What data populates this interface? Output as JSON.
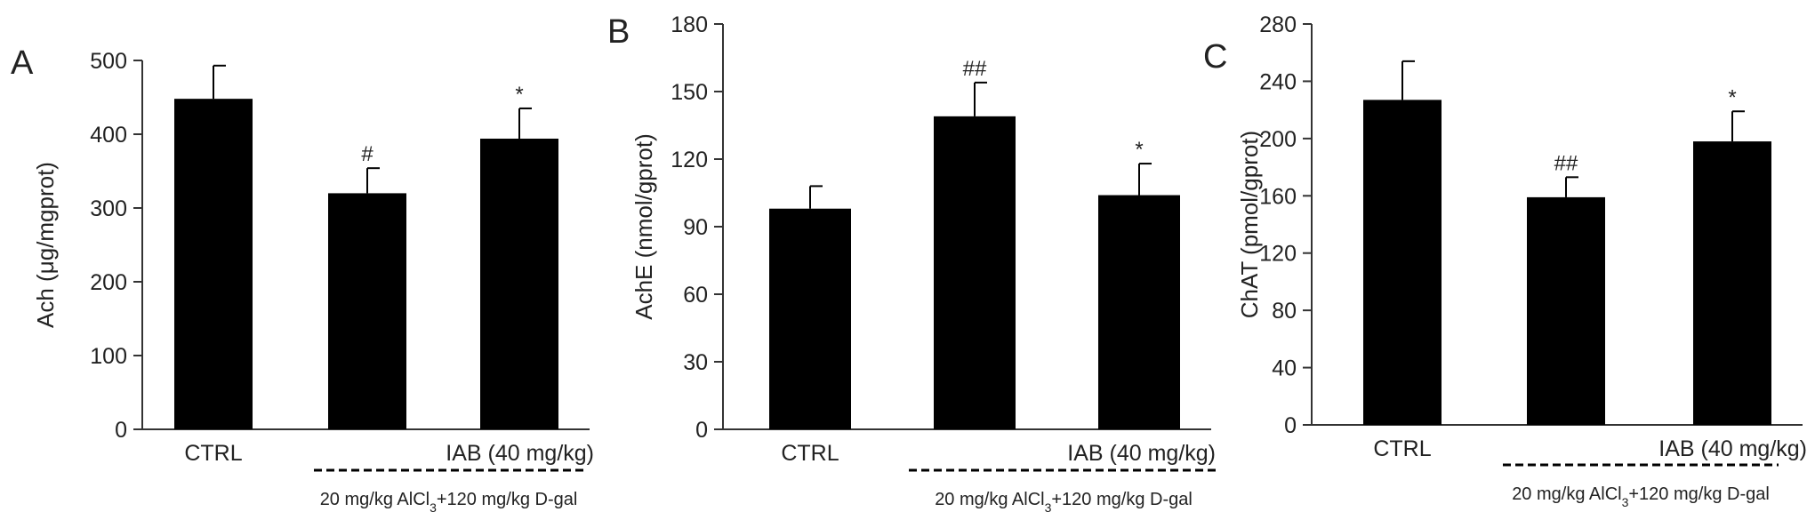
{
  "chart_data": [
    {
      "panel": "A",
      "type": "bar",
      "ylabel": "Ach (μg/mgprot)",
      "ylim": [
        0,
        500
      ],
      "yticks": [
        "0",
        "100",
        "200",
        "300",
        "400",
        "500"
      ],
      "categories": [
        "CTRL",
        "",
        "IAB (40 mg/kg)"
      ],
      "treatment": {
        "pre": "20 mg/kg AlCl",
        "sub": "3",
        "post": "+120 mg/kg D-gal"
      },
      "series": [
        {
          "values": [
            448,
            320,
            394
          ],
          "errors": [
            45,
            34,
            41
          ],
          "annotations": [
            "",
            "#",
            "*"
          ]
        }
      ]
    },
    {
      "panel": "B",
      "type": "bar",
      "ylabel": "AchE (nmol/gprot)",
      "ylim": [
        0,
        180
      ],
      "yticks": [
        "0",
        "30",
        "60",
        "90",
        "120",
        "150",
        "180"
      ],
      "categories": [
        "CTRL",
        "",
        "IAB (40 mg/kg)"
      ],
      "treatment": {
        "pre": "20 mg/kg AlCl",
        "sub": "3",
        "post": "+120 mg/kg D-gal"
      },
      "series": [
        {
          "values": [
            98,
            139,
            104
          ],
          "errors": [
            10,
            15,
            14
          ],
          "annotations": [
            "",
            "##",
            "*"
          ]
        }
      ]
    },
    {
      "panel": "C",
      "type": "bar",
      "ylabel": "ChAT (pmol/gprot)",
      "ylim": [
        0,
        280
      ],
      "yticks": [
        "0",
        "40",
        "80",
        "120",
        "160",
        "200",
        "240",
        "280"
      ],
      "categories": [
        "CTRL",
        "",
        "IAB (40 mg/kg)"
      ],
      "treatment": {
        "pre": "20 mg/kg AlCl",
        "sub": "3",
        "post": "+120 mg/kg D-gal"
      },
      "series": [
        {
          "values": [
            227,
            159,
            198
          ],
          "errors": [
            27,
            14,
            21
          ],
          "annotations": [
            "",
            "##",
            "*"
          ]
        }
      ]
    }
  ]
}
